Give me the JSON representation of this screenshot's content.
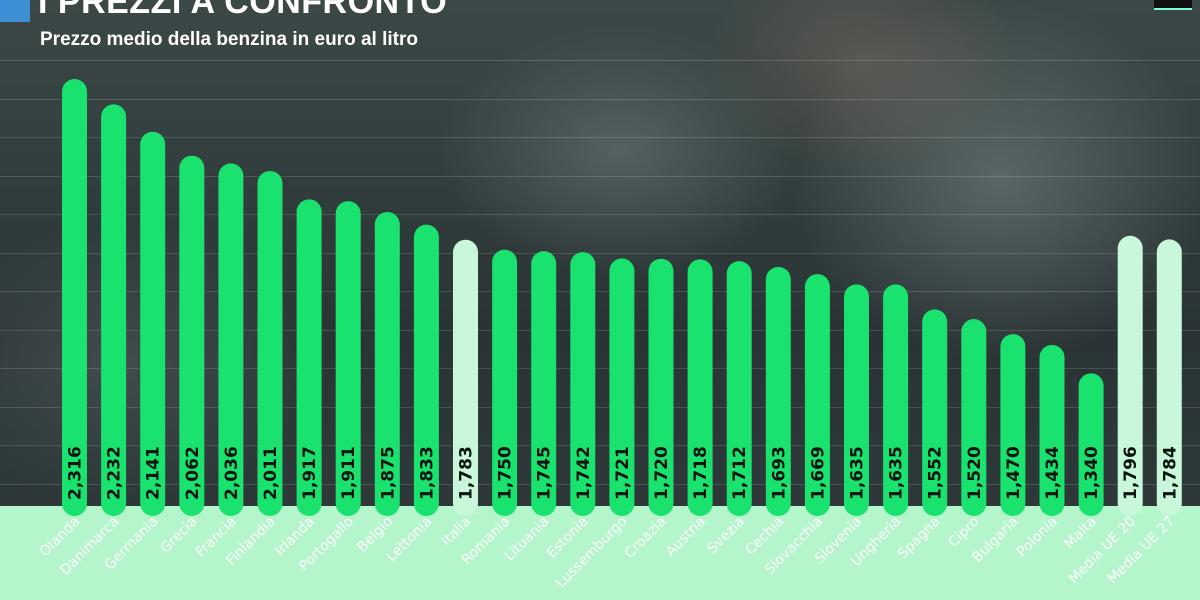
{
  "title": "I PREZZI A CONFRONTO",
  "subtitle": "Prezzo medio della benzina in euro al litro",
  "colors": {
    "bar": "#19e26f",
    "highlight": "#c8f8d9",
    "band": "#b4f5cb"
  },
  "chart_data": {
    "type": "bar",
    "title": "I PREZZI A CONFRONTO",
    "subtitle": "Prezzo medio della benzina in euro al litro",
    "categories": [
      "Olanda",
      "Danimarca",
      "Germania",
      "Grecia",
      "Francia",
      "Finlandia",
      "Irlanda",
      "Portogallo",
      "Belgio",
      "Lettonia",
      "Italia",
      "Romania",
      "Lituania",
      "Estonia",
      "Lussemburgo",
      "Croazia",
      "Austria",
      "Svezia",
      "Cechia",
      "Slovacchia",
      "Slovenia",
      "Ungheria",
      "Spagna",
      "Cipro",
      "Bulgaria",
      "Polonia",
      "Malta",
      "Media UE 20",
      "Media UE 27"
    ],
    "values": [
      2.316,
      2.232,
      2.141,
      2.062,
      2.036,
      2.011,
      1.917,
      1.911,
      1.875,
      1.833,
      1.783,
      1.75,
      1.745,
      1.742,
      1.721,
      1.72,
      1.718,
      1.712,
      1.693,
      1.669,
      1.635,
      1.635,
      1.552,
      1.52,
      1.47,
      1.434,
      1.34,
      1.796,
      1.784
    ],
    "value_labels": [
      "2,316",
      "2,232",
      "2,141",
      "2,062",
      "2,036",
      "2,011",
      "1,917",
      "1,911",
      "1,875",
      "1,833",
      "1,783",
      "1,750",
      "1,745",
      "1,742",
      "1,721",
      "1,720",
      "1,718",
      "1,712",
      "1,693",
      "1,669",
      "1,635",
      "1,635",
      "1,552",
      "1,520",
      "1,470",
      "1,434",
      "1,340",
      "1,796",
      "1,784"
    ],
    "highlighted": [
      "Italia",
      "Media UE 20",
      "Media UE 27"
    ],
    "grid": true,
    "legend": "none"
  }
}
